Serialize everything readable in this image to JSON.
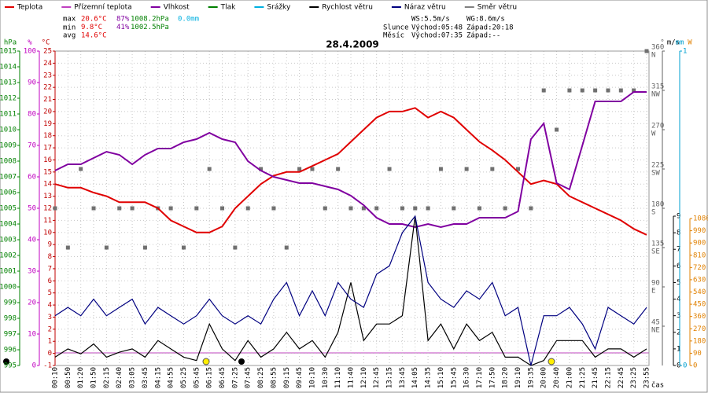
{
  "chart_data": {
    "type": "line",
    "title": "28.4.2009",
    "x_label": "čas",
    "legend": [
      {
        "name": "Teplota",
        "color": "#e00000"
      },
      {
        "name": "Přízemní teplota",
        "color": "#c040c0"
      },
      {
        "name": "Vlhkost",
        "color": "#8000a0"
      },
      {
        "name": "Tlak",
        "color": "#008000"
      },
      {
        "name": "Srážky",
        "color": "#00b0e0"
      },
      {
        "name": "Rychlost větru",
        "color": "#000000"
      },
      {
        "name": "Náraz větru",
        "color": "#000080"
      },
      {
        "name": "Směr větru",
        "color": "#808080"
      }
    ],
    "stats": {
      "max_label": "max",
      "min_label": "min",
      "avg_label": "avg",
      "max": [
        "20.6°C",
        "87%",
        "1008.2hPa",
        "0.0mm"
      ],
      "min": [
        "9.8°C",
        "41%",
        "1002.5hPa"
      ],
      "avg": [
        "14.6°C"
      ],
      "ws": "WS:5.5m/s",
      "wg": "WG:8.6m/s",
      "sun": "Slunce",
      "sun_rise": "Východ:05:48",
      "sun_set": "Západ:20:18",
      "moon": "Měsíc",
      "moon_rise": "Východ:07:35",
      "moon_set": "Západ:--"
    },
    "categories": [
      "00:10",
      "00:50",
      "01:20",
      "01:50",
      "02:15",
      "02:40",
      "03:05",
      "03:45",
      "04:15",
      "04:55",
      "05:25",
      "05:45",
      "06:15",
      "06:45",
      "07:25",
      "07:45",
      "08:25",
      "08:55",
      "09:15",
      "09:45",
      "10:10",
      "10:30",
      "11:10",
      "11:40",
      "12:10",
      "12:45",
      "13:15",
      "13:45",
      "14:05",
      "14:35",
      "15:10",
      "15:45",
      "16:30",
      "17:10",
      "17:50",
      "18:20",
      "19:10",
      "19:35",
      "20:00",
      "20:40",
      "21:00",
      "21:25",
      "21:45",
      "22:15",
      "22:45",
      "23:25",
      "23:55"
    ],
    "axes": {
      "hpa": {
        "label": "hPa",
        "color": "#008000",
        "ylim": [
          995,
          1015
        ],
        "yticks": [
          995,
          996,
          997,
          998,
          999,
          1000,
          1001,
          1002,
          1003,
          1004,
          1005,
          1006,
          1007,
          1008,
          1009,
          1010,
          1011,
          1012,
          1013,
          1014,
          1015
        ]
      },
      "pct": {
        "label": "%",
        "color": "#c000c0",
        "ylim": [
          0,
          100
        ],
        "yticks": [
          0,
          10,
          20,
          30,
          40,
          50,
          60,
          70,
          80,
          90,
          100
        ]
      },
      "temp": {
        "label": "°C",
        "color": "#c00000",
        "ylim": [
          -1,
          25
        ],
        "yticks": [
          -1,
          0,
          1,
          2,
          3,
          4,
          5,
          6,
          7,
          8,
          9,
          10,
          11,
          12,
          13,
          14,
          15,
          16,
          17,
          18,
          19,
          20,
          21,
          22,
          23,
          24,
          25
        ]
      },
      "dir": {
        "label": "°",
        "color": "#606060",
        "ylim": [
          0,
          360
        ],
        "yticks": [
          45,
          90,
          135,
          180,
          225,
          270,
          315,
          360
        ],
        "tick_names": [
          "NE",
          "E",
          "SE",
          "S",
          "SW",
          "W",
          "NW",
          "N"
        ]
      },
      "ms": {
        "label": "m/s",
        "color": "#000000",
        "ylim": [
          0,
          9
        ],
        "yticks": [
          0,
          1,
          2,
          3,
          4,
          5,
          6,
          7,
          8,
          9
        ]
      },
      "mm": {
        "label": "mm",
        "color": "#00a0d0",
        "ylim": [
          0,
          1
        ],
        "yticks": [
          0,
          1
        ]
      },
      "w": {
        "label": "W",
        "color": "#e08000",
        "ylim": [
          0,
          1080
        ],
        "yticks": [
          0,
          90,
          180,
          270,
          360,
          450,
          540,
          630,
          720,
          810,
          900,
          990,
          1080
        ]
      }
    },
    "series": [
      {
        "name": "Teplota",
        "color": "#e00000",
        "axis": "temp",
        "values": [
          14,
          13.7,
          13.7,
          13.3,
          13,
          12.5,
          12.5,
          12.5,
          12,
          11,
          10.5,
          10,
          10,
          10.5,
          12,
          13,
          14,
          14.7,
          15,
          15,
          15.5,
          16,
          16.5,
          17.5,
          18.5,
          19.5,
          20,
          20,
          20.3,
          19.5,
          20,
          19.5,
          18.5,
          17.5,
          16.8,
          16,
          15,
          14,
          14.3,
          14,
          13,
          12.5,
          12,
          11.5,
          11,
          10.3,
          9.8
        ]
      },
      {
        "name": "Vlhkost",
        "color": "#8000a0",
        "axis": "pct",
        "values": [
          62,
          64,
          64,
          66,
          68,
          67,
          64,
          67,
          69,
          69,
          71,
          72,
          74,
          72,
          71,
          65,
          62,
          60,
          59,
          58,
          58,
          57,
          56,
          54,
          51,
          47,
          45,
          45,
          44,
          45,
          44,
          45,
          45,
          47,
          47,
          47,
          49,
          72,
          77,
          58,
          56,
          70,
          84,
          84,
          84,
          87,
          87
        ]
      },
      {
        "name": "Rychlost větru",
        "color": "#000000",
        "axis": "ms",
        "values": [
          0.5,
          1,
          0.7,
          1.3,
          0.5,
          0.8,
          1,
          0.5,
          1.5,
          1,
          0.5,
          0.3,
          2.5,
          1,
          0.3,
          1.5,
          0.5,
          1,
          2,
          1,
          1.5,
          0.5,
          2,
          5,
          1.5,
          2.5,
          2.5,
          3,
          9,
          1.5,
          2.5,
          1,
          2.5,
          1.5,
          2,
          0.5,
          0.5,
          0,
          0.3,
          1.5,
          1.5,
          1.5,
          0.5,
          1,
          1,
          0.5,
          1
        ]
      },
      {
        "name": "Náraz větru",
        "color": "#000080",
        "axis": "ms",
        "values": [
          3,
          3.5,
          3,
          4,
          3,
          3.5,
          4,
          2.5,
          3.5,
          3,
          2.5,
          3,
          4,
          3,
          2.5,
          3,
          2.5,
          4,
          5,
          3,
          4.5,
          3,
          5,
          4,
          3.5,
          5.5,
          6,
          8,
          9,
          5,
          4,
          3.5,
          4.5,
          4,
          5,
          3,
          3.5,
          0,
          3,
          3,
          3.5,
          2.5,
          1,
          3.5,
          3,
          2.5,
          3.5
        ]
      }
    ],
    "wind_direction": {
      "name": "Směr větru",
      "color": "#707070",
      "axis": "dir",
      "values": [
        180,
        135,
        225,
        180,
        135,
        180,
        180,
        135,
        180,
        180,
        135,
        180,
        225,
        180,
        135,
        180,
        225,
        180,
        135,
        225,
        225,
        180,
        225,
        180,
        180,
        180,
        225,
        180,
        180,
        180,
        225,
        180,
        225,
        180,
        225,
        180,
        225,
        180,
        315,
        270,
        315,
        315,
        315,
        315,
        315,
        315,
        360
      ]
    }
  }
}
